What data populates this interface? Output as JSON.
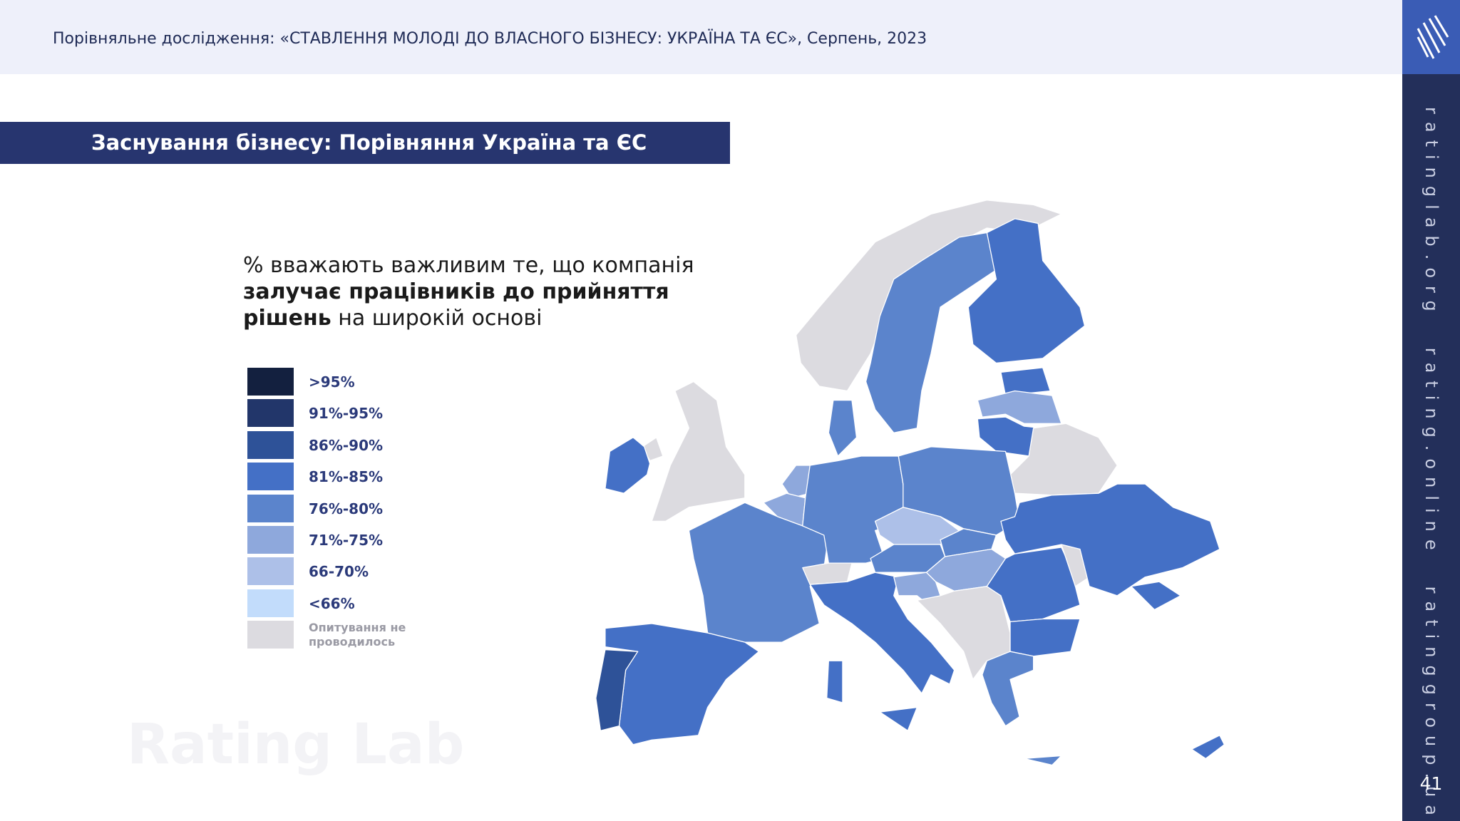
{
  "header": {
    "title": "Порівняльне дослідження: «СТАВЛЕННЯ МОЛОДІ ДО ВЛАСНОГО БІЗНЕСУ: УКРАЇНА ТА ЄС», Серпень, 2023"
  },
  "section_title": "Заснування бізнесу: Порівняння Україна та ЄС",
  "subtitle": {
    "before": "% вважають важливим те, що компанія ",
    "bold": "залучає працівників до прийняття рішень",
    "after": " на широкій основі"
  },
  "legend": [
    {
      "label": ">95%",
      "color": "#13203f"
    },
    {
      "label": "91%-95%",
      "color": "#22366a"
    },
    {
      "label": "86%-90%",
      "color": "#2e5298"
    },
    {
      "label": "81%-85%",
      "color": "#4470c6"
    },
    {
      "label": "76%-80%",
      "color": "#5b84cc"
    },
    {
      "label": "71%-75%",
      "color": "#8ea8dc"
    },
    {
      "label": "66-70%",
      "color": "#adc0e8"
    },
    {
      "label": "<66%",
      "color": "#c2dcfb"
    },
    {
      "label": "Опитування не проводилось",
      "color": "#dcdbe0"
    }
  ],
  "sidebar": [
    "ratinglab.org",
    "rating.online",
    "ratinggroup.ua"
  ],
  "page_number": "41",
  "watermark": "Rating Lab"
}
